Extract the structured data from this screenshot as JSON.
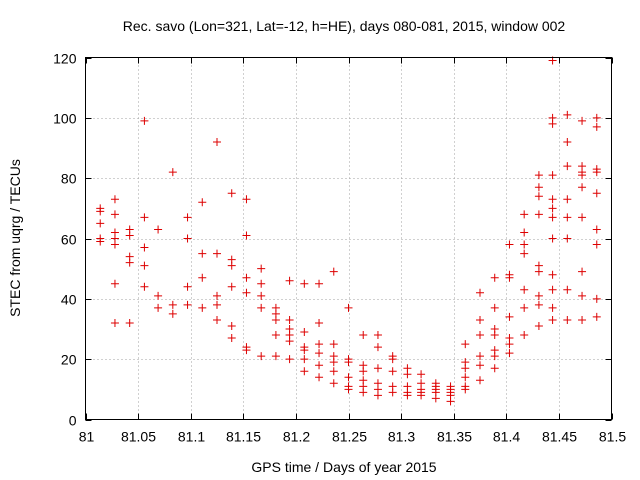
{
  "chart_data": {
    "type": "scatter",
    "title": "Rec. savo (Lon=321, Lat=-12, h=HE), days 080-081, 2015, window 002",
    "xlabel": "GPS time / Days of year 2015",
    "ylabel": "STEC from uqrg / TECUs",
    "xlim": [
      81,
      81.5
    ],
    "ylim": [
      0,
      120
    ],
    "xticks": [
      81,
      81.05,
      81.1,
      81.15,
      81.2,
      81.25,
      81.3,
      81.35,
      81.4,
      81.45,
      81.5
    ],
    "xtick_labels": [
      "81",
      "81.05",
      "81.1",
      "81.15",
      "81.2",
      "81.25",
      "81.3",
      "81.35",
      "81.4",
      "81.45",
      "81.5"
    ],
    "yticks": [
      0,
      20,
      40,
      60,
      80,
      100,
      120
    ],
    "ytick_labels": [
      "0",
      "20",
      "40",
      "60",
      "80",
      "100",
      "120"
    ],
    "grid": true,
    "marker": "+",
    "color": "#dd0000",
    "series": [
      {
        "name": "STEC",
        "x": [
          81.014,
          81.014,
          81.014,
          81.014,
          81.014,
          81.028,
          81.028,
          81.028,
          81.028,
          81.028,
          81.028,
          81.028,
          81.042,
          81.042,
          81.042,
          81.042,
          81.042,
          81.056,
          81.056,
          81.056,
          81.056,
          81.056,
          81.069,
          81.069,
          81.069,
          81.083,
          81.083,
          81.083,
          81.097,
          81.097,
          81.097,
          81.097,
          81.111,
          81.111,
          81.111,
          81.111,
          81.125,
          81.125,
          81.125,
          81.125,
          81.125,
          81.139,
          81.139,
          81.139,
          81.139,
          81.139,
          81.139,
          81.153,
          81.153,
          81.153,
          81.153,
          81.153,
          81.153,
          81.167,
          81.167,
          81.167,
          81.167,
          81.167,
          81.181,
          81.181,
          81.181,
          81.181,
          81.181,
          81.194,
          81.194,
          81.194,
          81.194,
          81.194,
          81.194,
          81.208,
          81.208,
          81.208,
          81.208,
          81.208,
          81.208,
          81.222,
          81.222,
          81.222,
          81.222,
          81.222,
          81.222,
          81.236,
          81.236,
          81.236,
          81.236,
          81.236,
          81.236,
          81.25,
          81.25,
          81.25,
          81.25,
          81.25,
          81.25,
          81.264,
          81.264,
          81.264,
          81.264,
          81.264,
          81.264,
          81.278,
          81.278,
          81.278,
          81.278,
          81.278,
          81.278,
          81.292,
          81.292,
          81.292,
          81.292,
          81.292,
          81.306,
          81.306,
          81.306,
          81.306,
          81.306,
          81.319,
          81.319,
          81.319,
          81.319,
          81.319,
          81.333,
          81.333,
          81.333,
          81.333,
          81.333,
          81.347,
          81.347,
          81.347,
          81.347,
          81.347,
          81.361,
          81.361,
          81.361,
          81.361,
          81.361,
          81.361,
          81.375,
          81.375,
          81.375,
          81.375,
          81.375,
          81.375,
          81.389,
          81.389,
          81.389,
          81.389,
          81.389,
          81.389,
          81.389,
          81.403,
          81.403,
          81.403,
          81.403,
          81.403,
          81.403,
          81.403,
          81.417,
          81.417,
          81.417,
          81.417,
          81.417,
          81.417,
          81.417,
          81.431,
          81.431,
          81.431,
          81.431,
          81.431,
          81.431,
          81.431,
          81.431,
          81.431,
          81.444,
          81.444,
          81.444,
          81.444,
          81.444,
          81.444,
          81.444,
          81.444,
          81.444,
          81.444,
          81.444,
          81.444,
          81.458,
          81.458,
          81.458,
          81.458,
          81.458,
          81.458,
          81.458,
          81.458,
          81.472,
          81.472,
          81.472,
          81.472,
          81.472,
          81.472,
          81.472,
          81.472,
          81.472,
          81.486,
          81.486,
          81.486,
          81.486,
          81.486,
          81.486,
          81.486,
          81.486,
          81.486
        ],
        "y": [
          70,
          69,
          65,
          60,
          59,
          73,
          68,
          62,
          60,
          58,
          45,
          32,
          63,
          61,
          54,
          52,
          32,
          99,
          67,
          57,
          51,
          44,
          63,
          41,
          37,
          82,
          38,
          35,
          67,
          60,
          44,
          38,
          72,
          55,
          47,
          37,
          92,
          55,
          41,
          38,
          33,
          75,
          53,
          51,
          44,
          31,
          27,
          73,
          61,
          47,
          42,
          24,
          23,
          50,
          45,
          41,
          37,
          21,
          37,
          35,
          33,
          28,
          21,
          46,
          33,
          30,
          28,
          26,
          20,
          45,
          29,
          24,
          23,
          20,
          16,
          45,
          32,
          25,
          22,
          18,
          14,
          49,
          25,
          21,
          19,
          16,
          12,
          37,
          20,
          19,
          14,
          11,
          10,
          28,
          18,
          16,
          13,
          11,
          9,
          28,
          24,
          17,
          12,
          10,
          8,
          21,
          20,
          16,
          11,
          9,
          17,
          15,
          11,
          9,
          8,
          15,
          12,
          10,
          9,
          8,
          12,
          11,
          10,
          9,
          7,
          11,
          10,
          9,
          8,
          6,
          25,
          19,
          17,
          14,
          11,
          10,
          42,
          33,
          28,
          21,
          18,
          13,
          47,
          37,
          30,
          28,
          23,
          21,
          17,
          58,
          48,
          47,
          34,
          27,
          25,
          22,
          68,
          62,
          58,
          55,
          43,
          37,
          28,
          81,
          77,
          74,
          68,
          51,
          49,
          41,
          38,
          31,
          119,
          100,
          98,
          81,
          73,
          70,
          67,
          60,
          48,
          43,
          37,
          33,
          101,
          92,
          84,
          73,
          67,
          60,
          43,
          33,
          99,
          84,
          82,
          81,
          77,
          67,
          49,
          41,
          33,
          100,
          97,
          83,
          82,
          75,
          63,
          58,
          40,
          34
        ]
      }
    ]
  }
}
